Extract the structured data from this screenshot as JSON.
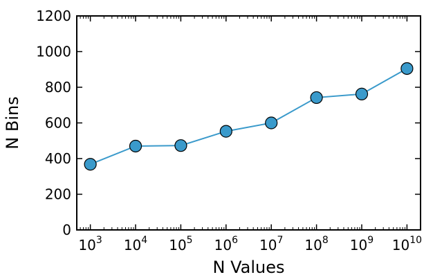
{
  "chart_data": {
    "type": "line",
    "title": "",
    "xlabel": "N Values",
    "ylabel": "N Bins",
    "x_scale": "log",
    "x_tick_base": "10",
    "x_tick_exponents": [
      "3",
      "4",
      "5",
      "6",
      "7",
      "8",
      "9",
      "10"
    ],
    "x": [
      1000,
      10000,
      100000,
      1000000,
      10000000,
      100000000,
      1000000000,
      10000000000
    ],
    "y": [
      368,
      470,
      473,
      553,
      600,
      742,
      762,
      905
    ],
    "ylim": [
      0,
      1200
    ],
    "yticks": [
      "0",
      "200",
      "400",
      "600",
      "800",
      "1000",
      "1200"
    ],
    "grid": false,
    "line_color": "#3a9acb",
    "marker_color": "#3a9acb",
    "marker_edge_color": "#000000"
  }
}
